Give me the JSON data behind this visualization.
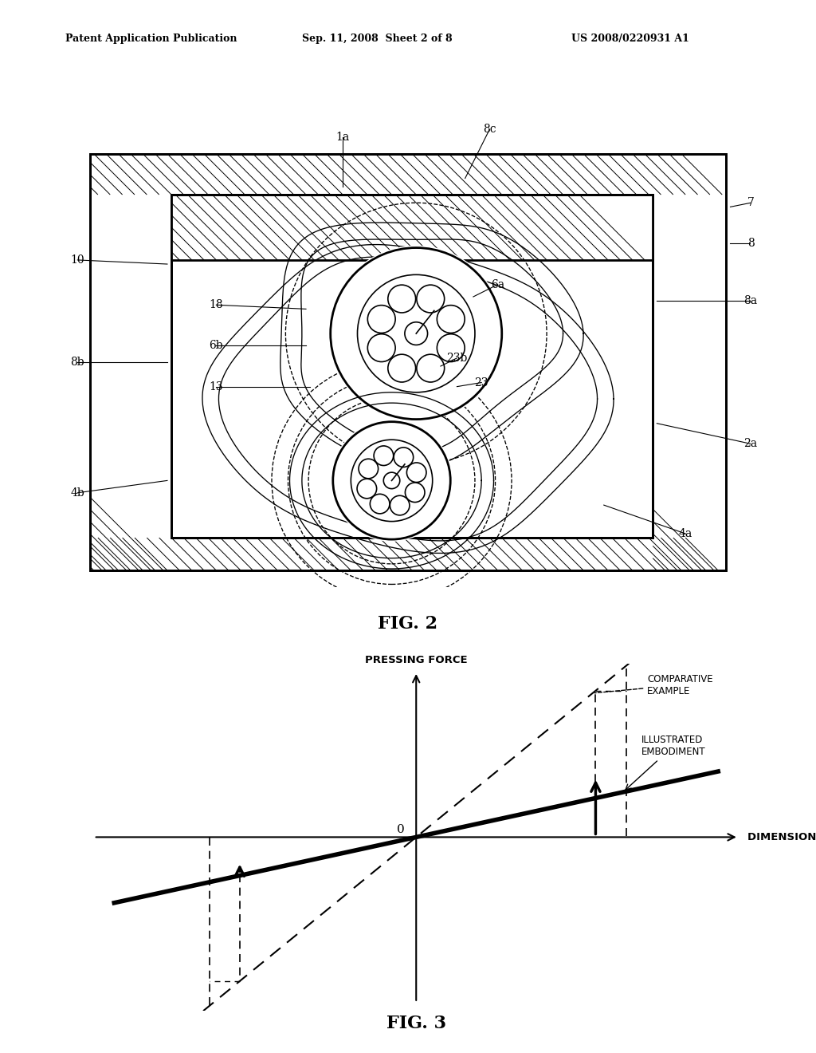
{
  "bg_color": "#ffffff",
  "header_left": "Patent Application Publication",
  "header_mid": "Sep. 11, 2008  Sheet 2 of 8",
  "header_right": "US 2008/0220931 A1",
  "fig2_label": "FIG. 2",
  "fig3_label": "FIG. 3",
  "graph_ylabel": "PRESSING FORCE",
  "graph_xlabel": "DIMENSIONAL ERROR",
  "graph_origin_label": "0",
  "label_comparative": "COMPARATIVE\nEXAMPLE",
  "label_illustrated": "ILLUSTRATED\nEMBODIMENT"
}
